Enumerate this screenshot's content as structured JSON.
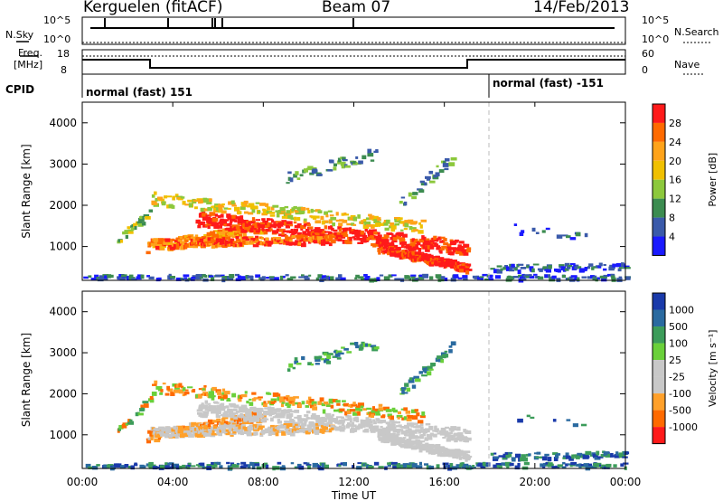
{
  "header": {
    "station": "Kerguelen (fitACF)",
    "beam": "Beam 07",
    "date": "14/Feb/2013"
  },
  "panels": {
    "nsky": {
      "label": "N.Sky",
      "ticks": [
        "10^5",
        "10^0"
      ],
      "right_label": "N.Search",
      "right_ticks": [
        "10^5",
        "10^0"
      ]
    },
    "freq": {
      "label_line1": "Freq.",
      "label_line2": "[MHz]",
      "ticks": [
        "18",
        "8"
      ],
      "right_label": "Nave",
      "right_ticks": [
        "60",
        "0"
      ]
    },
    "cpid": {
      "label": "CPID",
      "mode1": "normal (fast) 151",
      "mode2": "normal (fast) -151"
    }
  },
  "chart_data": [
    {
      "type": "heatmap",
      "title": "",
      "ylabel": "Slant Range [km]",
      "xlabel": "",
      "ylim": [
        180,
        4500
      ],
      "y_ticks": [
        "1000",
        "2000",
        "3000",
        "4000"
      ],
      "colorbar": {
        "label": "Power [dB]",
        "ticks": [
          "28",
          "24",
          "20",
          "16",
          "12",
          "8",
          "4"
        ],
        "colors": [
          "#ff1a1a",
          "#ff6a00",
          "#ffa31a",
          "#f0c000",
          "#8cc83c",
          "#3c8c50",
          "#3a5aaa",
          "#1a1aff"
        ]
      }
    },
    {
      "type": "heatmap",
      "title": "",
      "ylabel": "Slant Range [km]",
      "xlabel": "Time UT",
      "ylim": [
        180,
        4500
      ],
      "y_ticks": [
        "1000",
        "2000",
        "3000",
        "4000"
      ],
      "x_ticks": [
        "00:00",
        "04:00",
        "08:00",
        "12:00",
        "16:00",
        "20:00",
        "00:00"
      ],
      "colorbar": {
        "label": "Velocity [m s⁻¹]",
        "ticks": [
          "1000",
          "500",
          "100",
          "25",
          "-25",
          "-100",
          "-500",
          "-1000"
        ],
        "colors": [
          "#1a3aaa",
          "#2a6aa0",
          "#3c9c5a",
          "#6ad03a",
          "#c8c8c8",
          "#c8c8c8",
          "#ffa02a",
          "#ff6a00",
          "#ff1a1a"
        ]
      }
    }
  ]
}
